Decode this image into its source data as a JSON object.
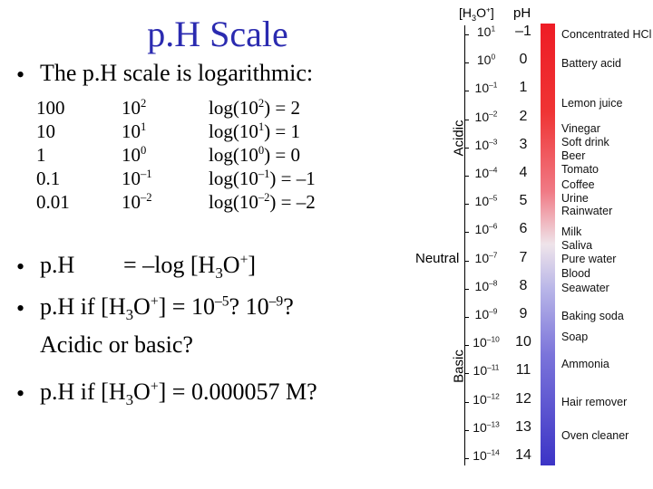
{
  "title": "p.H Scale",
  "bullets": {
    "b1": "The p.H scale is logarithmic:",
    "table": {
      "col1": [
        "100",
        "10",
        "1",
        "0.1",
        "0.01"
      ],
      "col2": [
        [
          "10",
          "2"
        ],
        [
          "10",
          "1"
        ],
        [
          "10",
          "0"
        ],
        [
          "10",
          "–1"
        ],
        [
          "10",
          "–2"
        ]
      ],
      "col3": [
        [
          "log(10",
          "2",
          ") = 2"
        ],
        [
          "log(10",
          "1",
          ") = 1"
        ],
        [
          "log(10",
          "0",
          ") = 0"
        ],
        [
          "log(10",
          "–1",
          ") = –1"
        ],
        [
          "log(10",
          "–2",
          ") = –2"
        ]
      ]
    },
    "b2_label": "p.H",
    "b2_formula": {
      "pre": "= –log [H",
      "sub": "3",
      "mid": "O",
      "sup": "+",
      "post": "]"
    },
    "b3": {
      "pre": "p.H if [H",
      "sub": "3",
      "mid": "O",
      "sup": "+",
      "post1": "] = 10",
      "exp1": "–5",
      "post2": "? 10",
      "exp2": "–9",
      "post3": "?",
      "line2": "Acidic or basic?"
    },
    "b4": {
      "pre": "p.H if [H",
      "sub": "3",
      "mid": "O",
      "sup": "+",
      "post": "] = 0.000057 M?"
    }
  },
  "scale": {
    "header_conc": {
      "pre": "[H",
      "sub": "3",
      "mid": "O",
      "sup": "+",
      "post": "]"
    },
    "header_ph": "pH",
    "axis_acidic": "Acidic",
    "axis_neutral": "Neutral",
    "axis_basic": "Basic",
    "rows": [
      {
        "exp": "1",
        "ph": "–1"
      },
      {
        "exp": "0",
        "ph": "0"
      },
      {
        "exp": "–1",
        "ph": "1"
      },
      {
        "exp": "–2",
        "ph": "2"
      },
      {
        "exp": "–3",
        "ph": "3"
      },
      {
        "exp": "–4",
        "ph": "4"
      },
      {
        "exp": "–5",
        "ph": "5"
      },
      {
        "exp": "–6",
        "ph": "6"
      },
      {
        "exp": "–7",
        "ph": "7"
      },
      {
        "exp": "–8",
        "ph": "8"
      },
      {
        "exp": "–9",
        "ph": "9"
      },
      {
        "exp": "–10",
        "ph": "10"
      },
      {
        "exp": "–11",
        "ph": "11"
      },
      {
        "exp": "–12",
        "ph": "12"
      },
      {
        "exp": "–13",
        "ph": "13"
      },
      {
        "exp": "–14",
        "ph": "14"
      }
    ],
    "base": "10",
    "substances": [
      "Concentrated HCl",
      "Battery acid",
      "Lemon juice",
      "Vinegar",
      "Soft drink",
      "Beer",
      "Tomato",
      "Coffee",
      "Urine",
      "Rainwater",
      "Milk",
      "Saliva",
      "Pure water",
      "Blood",
      "Seawater",
      "Baking soda",
      "Soap",
      "Ammonia",
      "Hair remover",
      "Oven cleaner"
    ]
  },
  "colors": {
    "title": "#2b2bb0",
    "acid": "#ee1c25",
    "base": "#3c34c6"
  }
}
